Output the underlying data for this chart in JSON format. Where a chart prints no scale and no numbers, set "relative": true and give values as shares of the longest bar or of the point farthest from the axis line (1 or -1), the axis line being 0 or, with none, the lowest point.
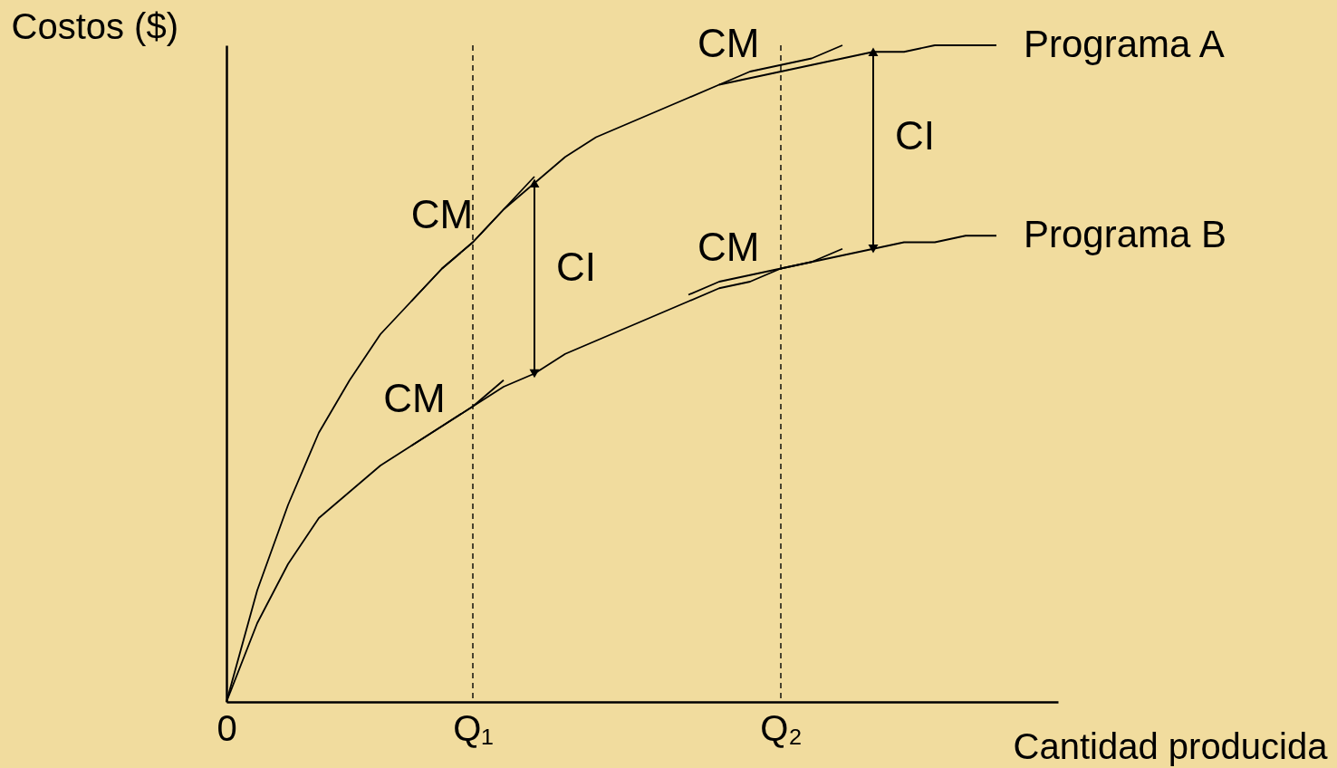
{
  "chart_data": {
    "type": "line",
    "relative": true,
    "xlabel": "Cantidad producida",
    "ylabel": "Costos ($)",
    "categories": [
      "0",
      null,
      null,
      null,
      null,
      null,
      null,
      null,
      "Q₁",
      null,
      null,
      null,
      null,
      null,
      null,
      null,
      null,
      null,
      "Q₂",
      null,
      null,
      null,
      null,
      null,
      null,
      null
    ],
    "grid": false,
    "marker": "none",
    "line_style": "solid",
    "series": [
      {
        "name": "Programa A",
        "color": "#000000",
        "values": [
          0,
          0.17,
          0.3,
          0.41,
          0.49,
          0.56,
          0.61,
          0.66,
          0.7,
          0.75,
          0.79,
          0.83,
          0.86,
          0.88,
          0.9,
          0.92,
          0.94,
          0.95,
          0.96,
          0.97,
          0.98,
          0.99,
          0.99,
          1,
          1,
          1
        ]
      },
      {
        "name": "Programa B",
        "color": "#000000",
        "values": [
          0,
          0.12,
          0.21,
          0.28,
          0.32,
          0.36,
          0.39,
          0.42,
          0.45,
          0.48,
          0.5,
          0.53,
          0.55,
          0.57,
          0.59,
          0.61,
          0.63,
          0.64,
          0.66,
          0.67,
          0.68,
          0.69,
          0.7,
          0.7,
          0.71,
          0.71
        ]
      },
      {
        "type": "line",
        "color": "#000000",
        "values": [
          null,
          null,
          null,
          null,
          null,
          null,
          0.61,
          0.66,
          0.7,
          0.75,
          0.8,
          null,
          null,
          null,
          null,
          null,
          null,
          null,
          null,
          null,
          null,
          null,
          null,
          null,
          null,
          null
        ]
      },
      {
        "type": "line",
        "color": "#000000",
        "values": [
          null,
          null,
          null,
          null,
          null,
          null,
          0.39,
          0.42,
          0.45,
          0.49,
          null,
          null,
          null,
          null,
          null,
          null,
          null,
          null,
          null,
          null,
          null,
          null,
          null,
          null,
          null,
          null
        ]
      },
      {
        "type": "line",
        "color": "#000000",
        "values": [
          null,
          null,
          null,
          null,
          null,
          null,
          null,
          null,
          null,
          null,
          null,
          null,
          null,
          null,
          null,
          null,
          0.94,
          0.96,
          0.97,
          0.98,
          1,
          null,
          null,
          null,
          null,
          null
        ]
      },
      {
        "type": "line",
        "color": "#000000",
        "values": [
          null,
          null,
          null,
          null,
          null,
          null,
          null,
          null,
          null,
          null,
          null,
          null,
          null,
          null,
          null,
          0.62,
          0.64,
          0.65,
          0.66,
          0.67,
          0.69,
          null,
          null,
          null,
          null,
          null
        ]
      }
    ],
    "ref_lines": [
      {
        "axis": "x",
        "value": "Q₁",
        "line_style": "dashed"
      },
      {
        "axis": "x",
        "value": "Q₂",
        "line_style": "dashed"
      }
    ],
    "annotations": [
      "CM",
      "CM",
      "CM",
      "CM",
      "CI",
      "CI"
    ]
  }
}
